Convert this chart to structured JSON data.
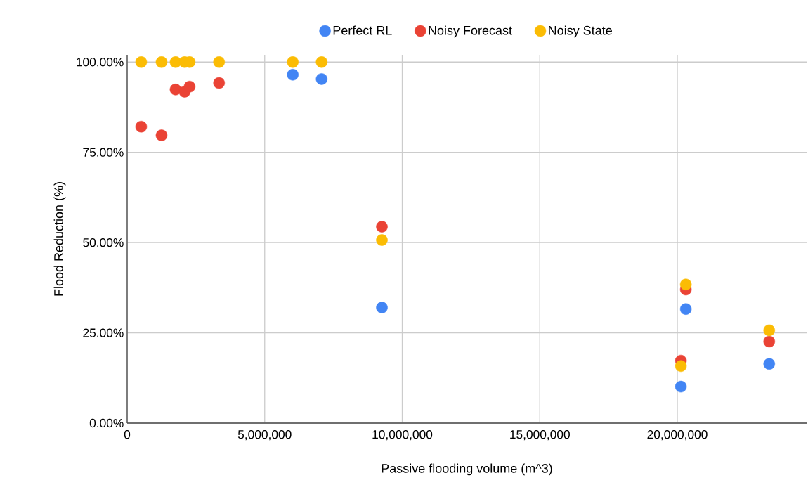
{
  "chart_data": {
    "type": "scatter",
    "xlabel": "Passive flooding volume (m^3)",
    "ylabel": "Flood Reduction (%)",
    "xlim": [
      0,
      24700000
    ],
    "ylim": [
      0,
      102
    ],
    "xticks": [
      0,
      {
        "value": 5000000,
        "label": "5,000,000"
      },
      {
        "value": 10000000,
        "label": "10,000,000"
      },
      {
        "value": 15000000,
        "label": "15,000,000"
      },
      {
        "value": 20000000,
        "label": "20,000,000"
      }
    ],
    "yticks": [
      {
        "value": 0,
        "label": "0.00%"
      },
      {
        "value": 25,
        "label": "25.00%"
      },
      {
        "value": 50,
        "label": "50.00%"
      },
      {
        "value": 75,
        "label": "75.00%"
      },
      {
        "value": 100,
        "label": "100.00%"
      }
    ],
    "grid": true,
    "legend": "top",
    "marker": "circle",
    "series": [
      {
        "name": "Perfect RL",
        "color": "#4285f4",
        "x": [
          6020000,
          7070000,
          9260000,
          20310000,
          20130000,
          23340000
        ],
        "values": [
          96.5,
          95.3,
          32.0,
          31.6,
          10.1,
          16.4
        ]
      },
      {
        "name": "Noisy Forecast",
        "color": "#ea4335",
        "x": [
          510000,
          1250000,
          1760000,
          2090000,
          2270000,
          3340000,
          9260000,
          20310000,
          20130000,
          23340000
        ],
        "values": [
          82.1,
          79.7,
          92.4,
          91.8,
          93.2,
          94.2,
          54.4,
          37.0,
          17.3,
          22.6
        ]
      },
      {
        "name": "Noisy State",
        "color": "#fbbc04",
        "x": [
          510000,
          1250000,
          1760000,
          2090000,
          2270000,
          3340000,
          6020000,
          7070000,
          9260000,
          20310000,
          20130000,
          23340000
        ],
        "values": [
          100,
          100,
          100,
          100,
          100,
          100,
          100,
          100,
          50.7,
          38.4,
          15.8,
          25.7
        ]
      }
    ]
  }
}
